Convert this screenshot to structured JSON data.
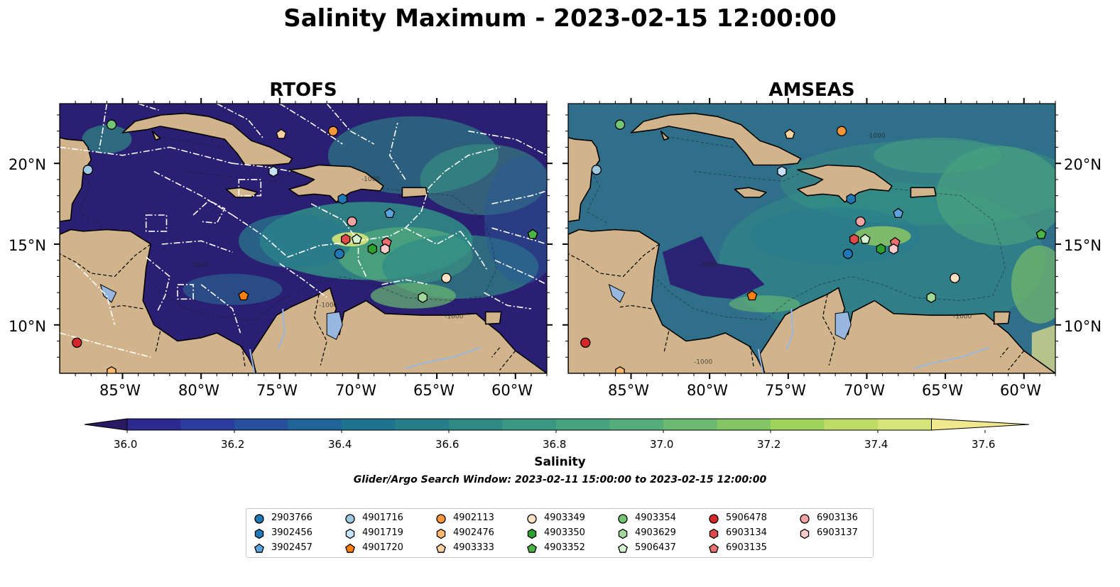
{
  "title": "Salinity Maximum - 2023-02-15 12:00:00",
  "panels": [
    {
      "title": "RTOFS"
    },
    {
      "title": "AMSEAS"
    }
  ],
  "axes": {
    "x_ticks": [
      "85°W",
      "80°W",
      "75°W",
      "70°W",
      "65°W",
      "60°W"
    ],
    "y_ticks": [
      "20°N",
      "15°N",
      "10°N"
    ]
  },
  "colorbar": {
    "label": "Salinity",
    "ticks": [
      "36.0",
      "36.2",
      "36.4",
      "36.6",
      "36.8",
      "37.0",
      "37.2",
      "37.4",
      "37.6"
    ],
    "colors": [
      "#2a1a63",
      "#2c2a8e",
      "#2a3d9e",
      "#26509c",
      "#1f6496",
      "#1d748f",
      "#257f8a",
      "#2f8a86",
      "#3a9782",
      "#47a37f",
      "#54ae79",
      "#6abb71",
      "#84c665",
      "#9fd45c",
      "#bfdd66",
      "#d6e57a",
      "#f0e88c"
    ]
  },
  "subtitle": "Glider/Argo Search Window: 2023-02-11 15:00:00 to 2023-02-15 12:00:00",
  "legend": [
    {
      "id": "2903766",
      "marker": "circle",
      "color": "#1f77b4"
    },
    {
      "id": "3902456",
      "marker": "hexagon",
      "color": "#1f77b4"
    },
    {
      "id": "3902457",
      "marker": "pentagon",
      "color": "#5ba3dd"
    },
    {
      "id": "4901716",
      "marker": "circle",
      "color": "#9ecae1"
    },
    {
      "id": "4901719",
      "marker": "hexagon",
      "color": "#c6e3f7"
    },
    {
      "id": "4901720",
      "marker": "pentagon",
      "color": "#ff7f0e"
    },
    {
      "id": "4902113",
      "marker": "circle",
      "color": "#f9953a"
    },
    {
      "id": "4902476",
      "marker": "hexagon",
      "color": "#fdb96b"
    },
    {
      "id": "4903333",
      "marker": "pentagon",
      "color": "#fdd0a2"
    },
    {
      "id": "4903349",
      "marker": "circle",
      "color": "#fee0c2"
    },
    {
      "id": "4903350",
      "marker": "hexagon",
      "color": "#2ca02c"
    },
    {
      "id": "4903352",
      "marker": "pentagon",
      "color": "#4bb543"
    },
    {
      "id": "4903354",
      "marker": "circle",
      "color": "#74c476"
    },
    {
      "id": "4903629",
      "marker": "hexagon",
      "color": "#a1d99b"
    },
    {
      "id": "5906437",
      "marker": "pentagon",
      "color": "#d3f2cd"
    },
    {
      "id": "5906478",
      "marker": "circle",
      "color": "#d62728"
    },
    {
      "id": "6903134",
      "marker": "hexagon",
      "color": "#e04a4a"
    },
    {
      "id": "6903135",
      "marker": "pentagon",
      "color": "#ec7070"
    },
    {
      "id": "6903136",
      "marker": "circle",
      "color": "#f4a3a3"
    },
    {
      "id": "6903137",
      "marker": "hexagon",
      "color": "#fbcaca"
    }
  ],
  "floats": [
    {
      "id": "2903766",
      "lon": -71.2,
      "lat": 14.4
    },
    {
      "id": "3902456",
      "lon": -71.0,
      "lat": 17.8
    },
    {
      "id": "3902457",
      "lon": -68.0,
      "lat": 16.9
    },
    {
      "id": "4901716",
      "lon": -87.2,
      "lat": 19.6
    },
    {
      "id": "4901719",
      "lon": -75.4,
      "lat": 19.5
    },
    {
      "id": "4901720",
      "lon": -77.3,
      "lat": 11.8
    },
    {
      "id": "4902113",
      "lon": -71.6,
      "lat": 22.0
    },
    {
      "id": "4902476",
      "lon": -85.7,
      "lat": 7.1
    },
    {
      "id": "4903333",
      "lon": -74.9,
      "lat": 21.8
    },
    {
      "id": "4903349",
      "lon": -64.4,
      "lat": 12.9
    },
    {
      "id": "4903350",
      "lon": -69.1,
      "lat": 14.7
    },
    {
      "id": "4903352",
      "lon": -58.9,
      "lat": 15.6
    },
    {
      "id": "4903354",
      "lon": -85.7,
      "lat": 22.4
    },
    {
      "id": "4903629",
      "lon": -65.9,
      "lat": 11.7
    },
    {
      "id": "5906437",
      "lon": -70.1,
      "lat": 15.3
    },
    {
      "id": "5906478",
      "lon": -87.9,
      "lat": 8.9
    },
    {
      "id": "6903134",
      "lon": -70.8,
      "lat": 15.3
    },
    {
      "id": "6903135",
      "lon": -68.2,
      "lat": 15.1
    },
    {
      "id": "6903136",
      "lon": -70.4,
      "lat": 16.4
    },
    {
      "id": "6903137",
      "lon": -68.3,
      "lat": 14.7
    }
  ],
  "contour_labels": [
    "-1000",
    "-1000",
    "-1000",
    "-1000"
  ]
}
